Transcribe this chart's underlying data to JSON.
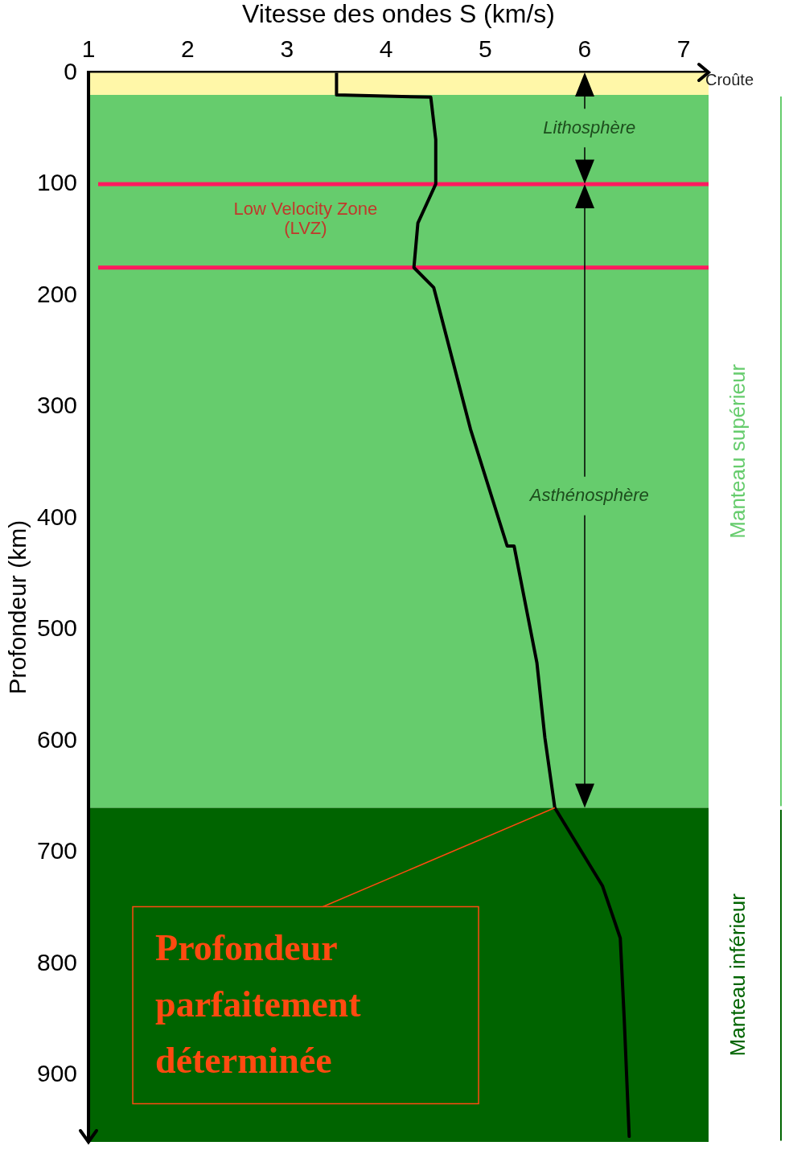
{
  "chart_data": {
    "type": "line",
    "xlabel": "Vitesse des ondes S (km/s)",
    "ylabel": "Profondeur (km)",
    "xlim": [
      1,
      7.25
    ],
    "xticks": [
      1,
      2,
      3,
      4,
      5,
      6,
      7
    ],
    "ylim": [
      960,
      0
    ],
    "yticks": [
      0,
      100,
      200,
      300,
      400,
      500,
      600,
      700,
      800,
      900
    ],
    "grid": false,
    "legend": false,
    "marker": "none",
    "line_style": "solid",
    "series": [
      {
        "color": "#000000",
        "x": [
          3.5,
          3.5,
          4.45,
          4.5,
          4.5,
          4.32,
          4.28,
          4.48,
          4.85,
          5.22,
          5.29,
          5.52,
          5.6,
          5.7,
          6.18,
          6.36,
          6.4,
          6.45
        ],
        "values": [
          0,
          20,
          22,
          60,
          100,
          135,
          175,
          193,
          320,
          425,
          425,
          530,
          597,
          660,
          730,
          777,
          850,
          955
        ]
      }
    ],
    "bands": [
      {
        "axis": "y",
        "from": 0,
        "to": 20,
        "label": "Croûte",
        "color": "#fff7a8"
      },
      {
        "axis": "y",
        "from": 20,
        "to": 660,
        "label": "Manteau supérieur",
        "color": "#66cc6d"
      },
      {
        "axis": "y",
        "from": 660,
        "to": 960,
        "label": "Manteau inférieur",
        "color": "#006400"
      }
    ],
    "ref_lines": [
      {
        "axis": "y",
        "value": 100,
        "color": "#ff1a5e"
      },
      {
        "axis": "y",
        "value": 175,
        "color": "#ff1a5e"
      }
    ],
    "annotations": [
      "Low Velocity Zone\n(LVZ)",
      "Lithosphère",
      "Asthénosphère",
      {
        "text": "Profondeur\nparfaitement\ndéterminée",
        "x": 5.7,
        "y": 660
      }
    ]
  }
}
